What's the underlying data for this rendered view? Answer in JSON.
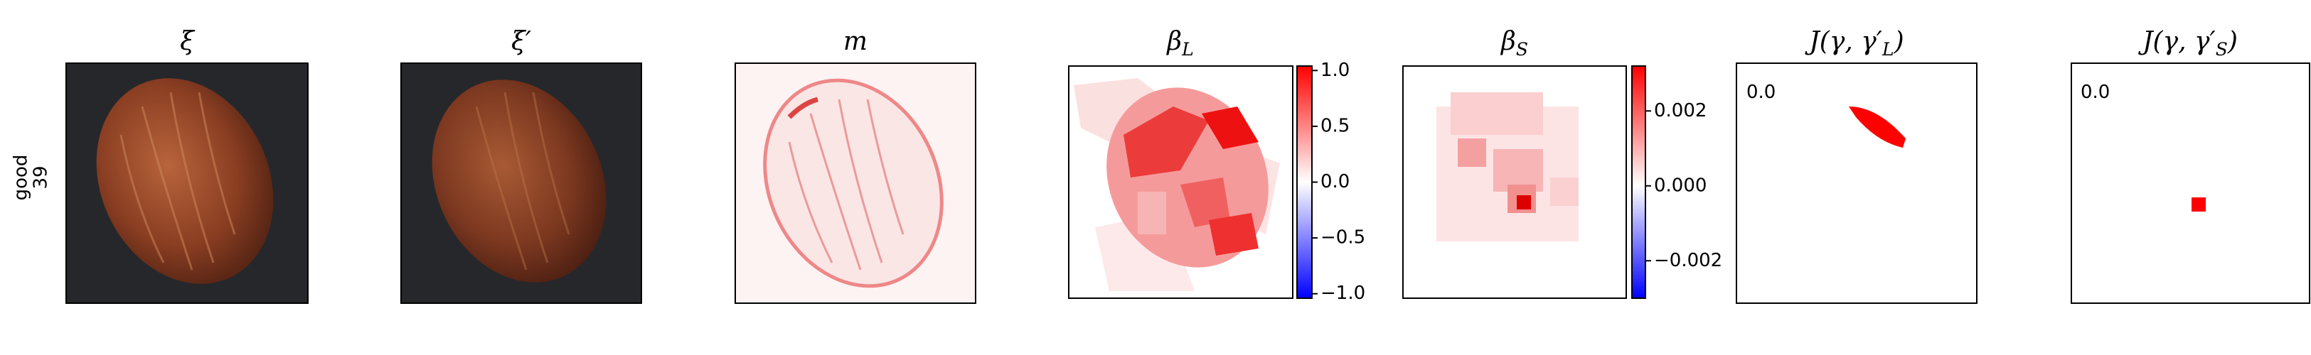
{
  "row_label": {
    "line1": "good",
    "line2": "39"
  },
  "panels": [
    {
      "symbol": "ξ"
    },
    {
      "symbol": "ξ′"
    },
    {
      "symbol": "m"
    },
    {
      "symbol": "β",
      "subscript": "L"
    },
    {
      "symbol": "β",
      "subscript": "S"
    },
    {
      "prefix": "J(γ, γ′",
      "subscript": "L",
      "suffix": ")"
    },
    {
      "prefix": "J(γ, γ′",
      "subscript": "S",
      "suffix": ")"
    }
  ],
  "colorbars": [
    {
      "ylim": [
        -1.04,
        1.04
      ],
      "ticks": [
        {
          "value": 1.0,
          "label": "1.0"
        },
        {
          "value": 0.5,
          "label": "0.5"
        },
        {
          "value": 0.0,
          "label": "0.0"
        },
        {
          "value": -0.5,
          "label": "−0.5"
        },
        {
          "value": -1.0,
          "label": "−1.0"
        }
      ]
    },
    {
      "ylim": [
        -0.003,
        0.0032
      ],
      "ticks": [
        {
          "value": 0.002,
          "label": "0.002"
        },
        {
          "value": 0.0,
          "label": "0.000"
        },
        {
          "value": -0.002,
          "label": "−0.002"
        }
      ]
    }
  ],
  "annotations": [
    "0.0",
    "0.0"
  ]
}
